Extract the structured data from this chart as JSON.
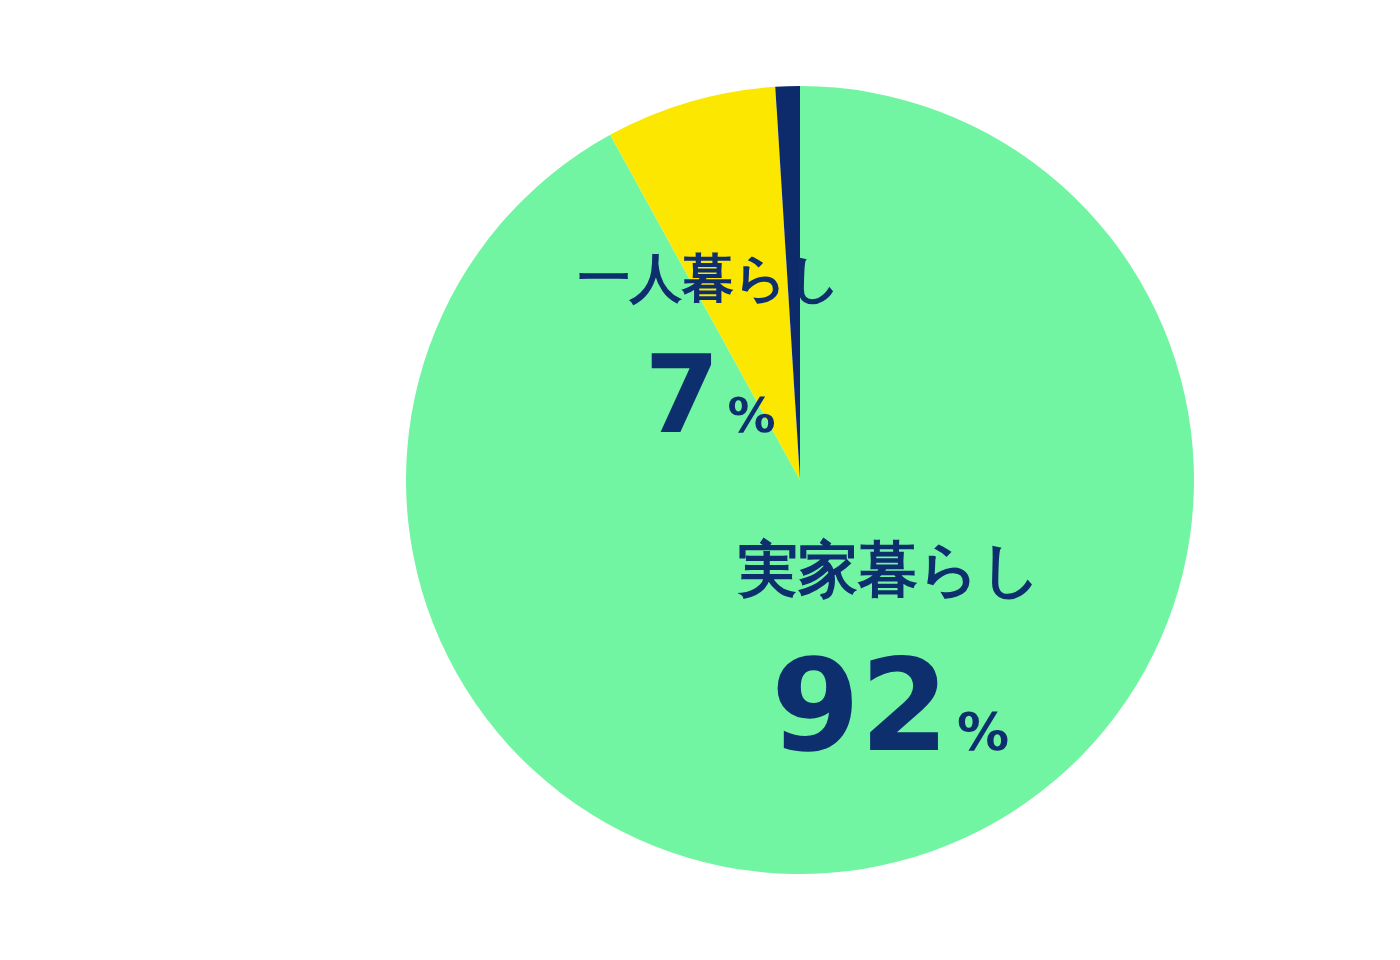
{
  "chart_data": {
    "type": "pie",
    "categories": [
      "実家暮らし",
      "一人暮らし",
      null
    ],
    "values": [
      92,
      7,
      1
    ],
    "colors": [
      "#72f5a2",
      "#fbe700",
      "#0d2a6b"
    ],
    "value_labels": [
      "92%",
      "7%",
      null
    ],
    "legend": false
  }
}
